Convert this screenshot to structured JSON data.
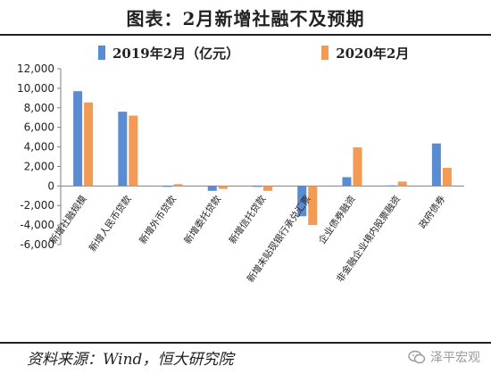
{
  "title": "图表：2月新增社融不及预期",
  "source": "资料来源：Wind，恒大研究院",
  "watermark": "泽平宏观",
  "colors": {
    "series1": "#5b8bd0",
    "series2": "#f39a55",
    "axis": "#7f7f7f",
    "text": "#222222"
  },
  "chart_data": {
    "type": "bar",
    "categories": [
      "新增社融规模",
      "新增人民币贷款",
      "新增外币贷款",
      "新增委托贷款",
      "新增信托贷款",
      "新增未贴现银行承兑汇票",
      "企业债券融资",
      "非金融企业境内股票融资",
      "政府债券"
    ],
    "series": [
      {
        "name": "2019年2月（亿元）",
        "values": [
          9700,
          7600,
          -80,
          -500,
          -30,
          -3100,
          900,
          50,
          4350
        ]
      },
      {
        "name": "2020年2月",
        "values": [
          8550,
          7200,
          180,
          -300,
          -500,
          -4000,
          3950,
          450,
          1850
        ]
      }
    ],
    "ylim": [
      -6000,
      12000
    ],
    "yticks": [
      "-6,000",
      "-4,000",
      "-2,000",
      "0",
      "2,000",
      "4,000",
      "6,000",
      "8,000",
      "10,000",
      "12,000"
    ],
    "ytick_values": [
      -6000,
      -4000,
      -2000,
      0,
      2000,
      4000,
      6000,
      8000,
      10000,
      12000
    ],
    "legend": "top"
  }
}
